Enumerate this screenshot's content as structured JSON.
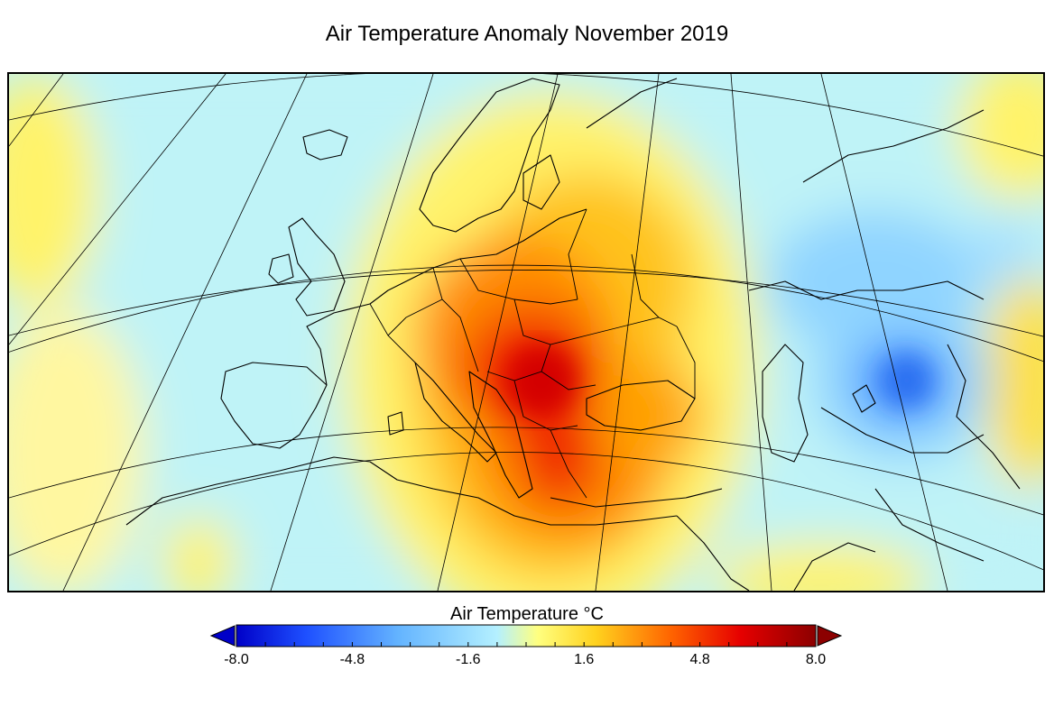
{
  "title": "Air Temperature Anomaly November 2019",
  "colorbar": {
    "label": "Air Temperature °C",
    "min": -8.0,
    "max": 8.0,
    "tick_labels": [
      "-8.0",
      "-4.8",
      "-1.6",
      "1.6",
      "4.8",
      "8.0"
    ],
    "tick_values": [
      -8.0,
      -4.8,
      -1.6,
      1.6,
      4.8,
      8.0
    ],
    "extend": "both",
    "colors": [
      "#0000c8",
      "#1e50ff",
      "#64b4ff",
      "#b4f0ff",
      "#ffff64",
      "#ffc800",
      "#ff6400",
      "#e60000",
      "#8c0000"
    ]
  },
  "map": {
    "region": "Europe",
    "projection": "conic",
    "hotspot": "South-eastern Europe (Romania, Bulgaria, Hungary)",
    "cold_region": "Kazakhstan / Central Asia"
  }
}
